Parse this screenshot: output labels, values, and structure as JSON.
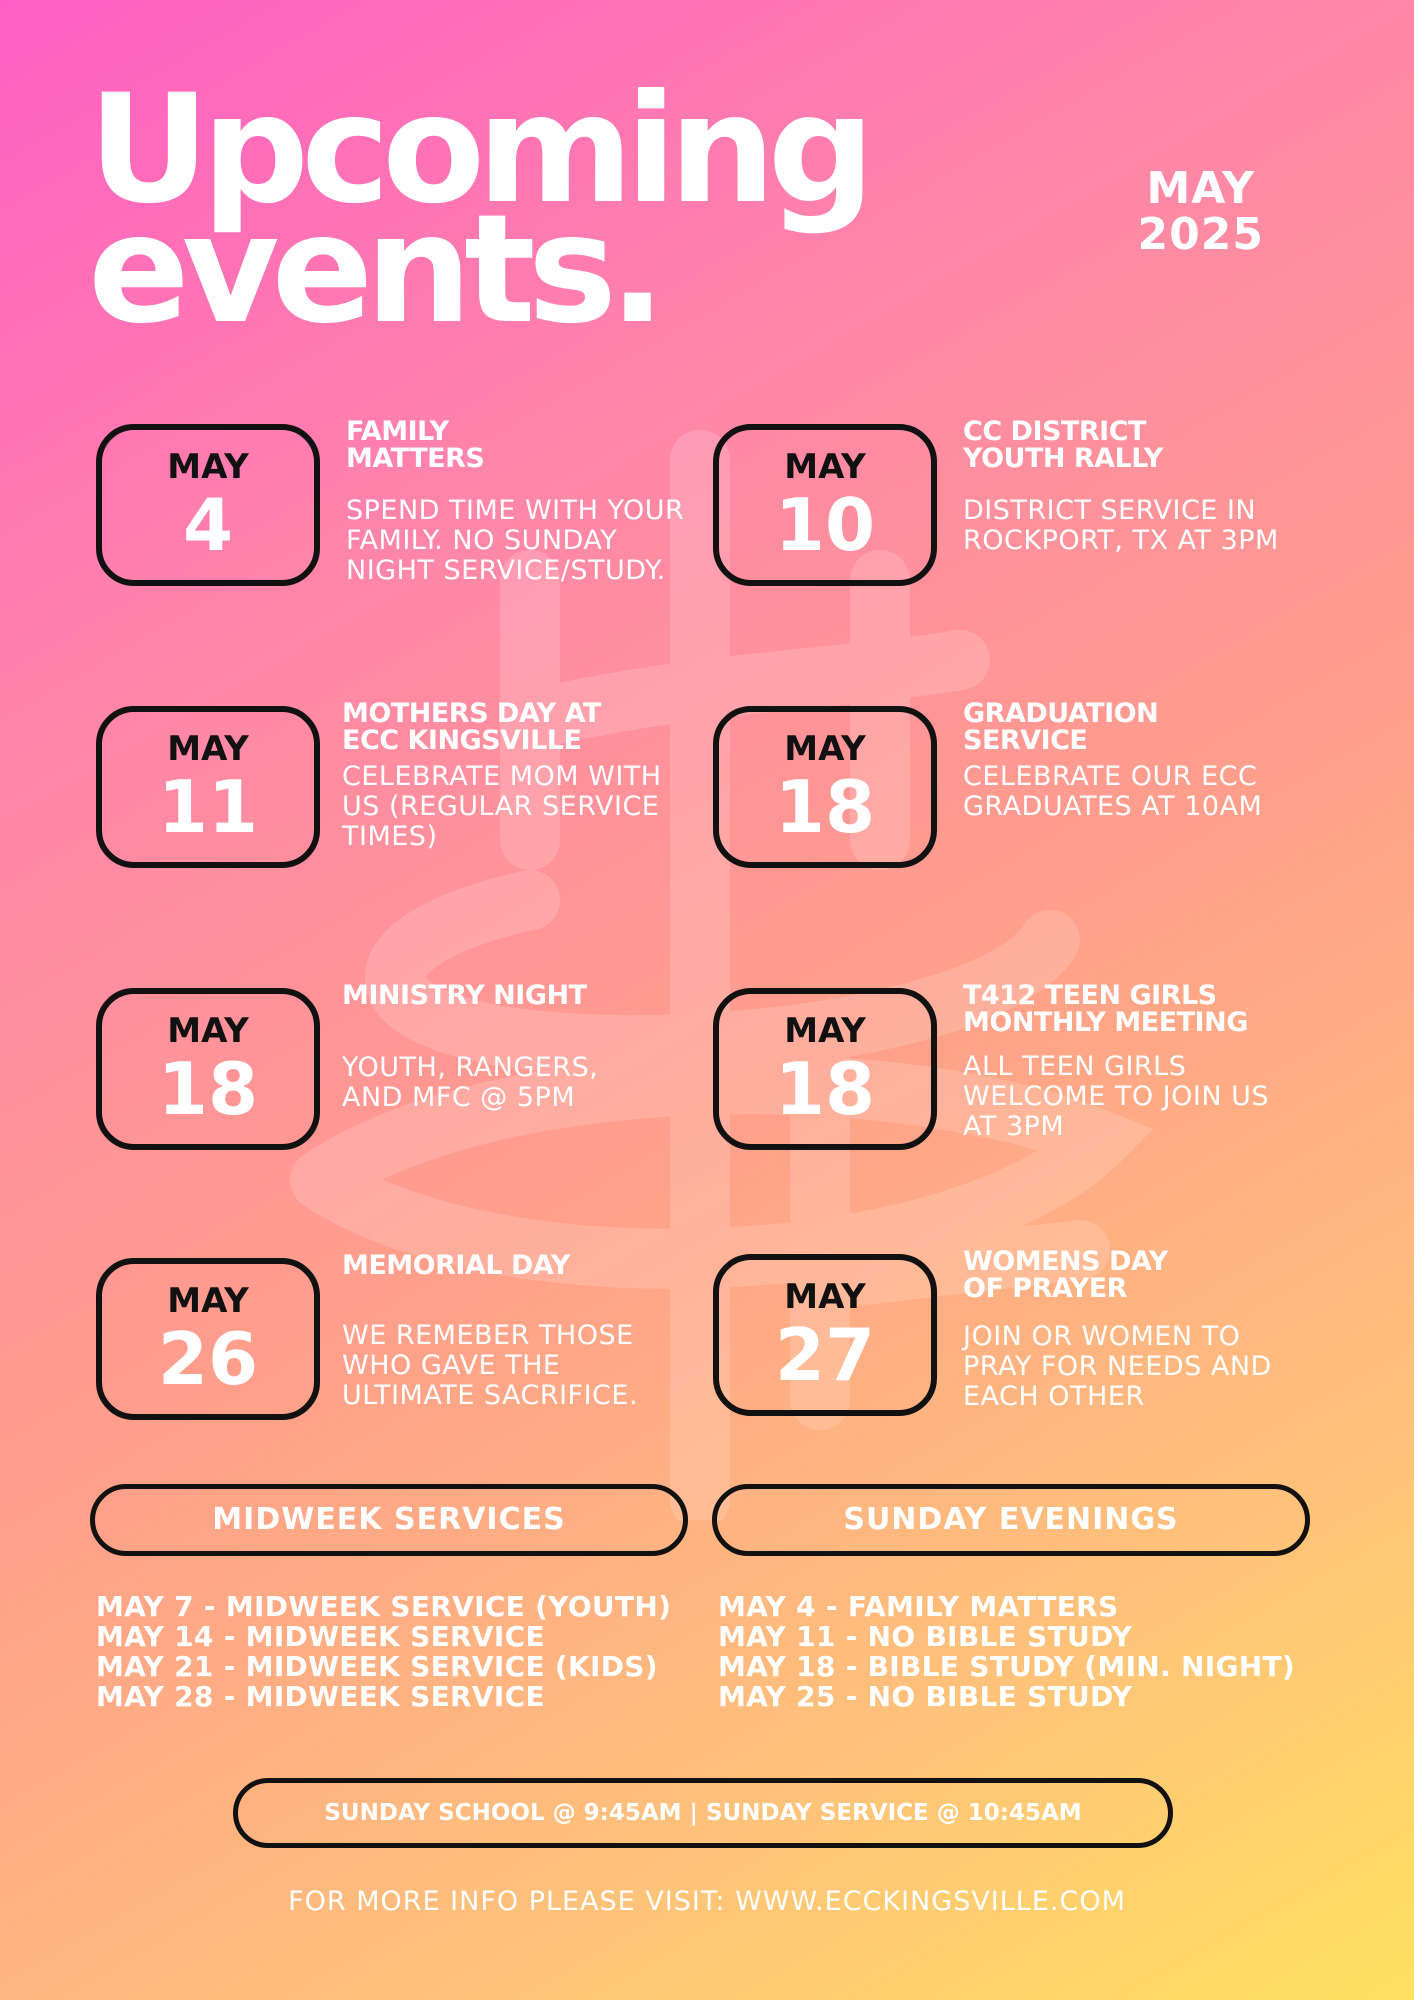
{
  "title": "Upcoming events.",
  "month": "MAY",
  "year": "2025",
  "events": [
    {
      "month": "MAY",
      "day": "4",
      "title": "FAMILY MATTERS",
      "description": "SPEND TIME WITH YOUR FAMILY. NO SUNDAY NIGHT SERVICE/STUDY."
    },
    {
      "month": "MAY",
      "day": "10",
      "title": "CC DISTRICT YOUTH RALLY",
      "description": "DISTRICT SERVICE IN ROCKPORT, TX AT 3PM"
    },
    {
      "month": "MAY",
      "day": "11",
      "title": "MOTHERS DAY AT ECC KINGSVILLE",
      "description": "CELEBRATE MOM WITH US (REGULAR SERVICE TIMES)"
    },
    {
      "month": "MAY",
      "day": "18",
      "title": "GRADUATION SERVICE",
      "description": "CELEBRATE OUR ECC GRADUATES AT 10AM"
    },
    {
      "month": "MAY",
      "day": "18",
      "title": "MINISTRY NIGHT",
      "description": "YOUTH, RANGERS, AND MFC @ 5PM"
    },
    {
      "month": "MAY",
      "day": "18",
      "title": "T412 TEEN GIRLS MONTHLY MEETING",
      "description": "ALL TEEN GIRLS WELCOME TO JOIN US AT 3PM"
    },
    {
      "month": "MAY",
      "day": "26",
      "title": "MEMORIAL DAY",
      "description": "WE REMEBER THOSE WHO GAVE THE ULTIMATE SACRIFICE."
    },
    {
      "month": "MAY",
      "day": "27",
      "title": "WOMENS DAY OF PRAYER",
      "description": "JOIN OR WOMEN TO PRAY FOR NEEDS AND EACH OTHER"
    }
  ],
  "midweek": {
    "heading": "MIDWEEK SERVICES",
    "items": [
      "MAY 7 - MIDWEEK SERVICE (YOUTH)",
      "MAY 14 - MIDWEEK SERVICE",
      "MAY 21 - MIDWEEK SERVICE (KIDS)",
      "MAY 28 - MIDWEEK SERVICE"
    ]
  },
  "sunday_evenings": {
    "heading": "SUNDAY EVENINGS",
    "items": [
      "MAY 4 - FAMILY MATTERS",
      "MAY 11 - NO BIBLE STUDY",
      "MAY 18 - BIBLE STUDY (MIN. NIGHT)",
      "MAY 25 - NO BIBLE STUDY"
    ]
  },
  "service_times": "SUNDAY SCHOOL @ 9:45AM  | SUNDAY SERVICE @ 10:45AM",
  "footer": "FOR MORE INFO PLEASE VISIT: WWW.ECCKINGSVILLE.COM",
  "colors": {
    "gradient_start": "#ff5fc4",
    "gradient_mid": "#ffa08a",
    "gradient_end": "#ffe160",
    "outline": "#111111",
    "text": "#ffffff"
  },
  "watermark_icon": "cross-logo-icon"
}
